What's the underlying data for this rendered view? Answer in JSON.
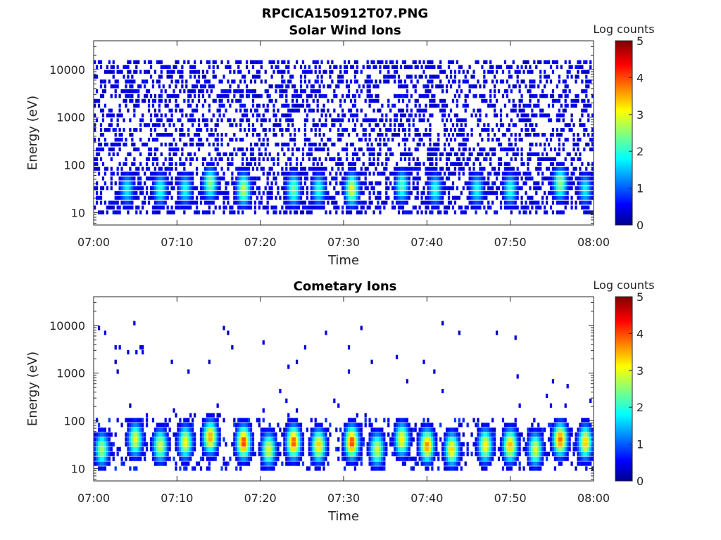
{
  "figure": {
    "suptitle": "RPCICA150912T07.PNG"
  },
  "colorbar": {
    "label": "Log counts",
    "ticks": [
      "0",
      "1",
      "2",
      "3",
      "4",
      "5"
    ],
    "range": [
      0,
      5
    ],
    "colormap": "jet"
  },
  "chart_data": [
    {
      "type": "heatmap",
      "title": "Solar Wind Ions",
      "xlabel": "Time",
      "ylabel": "Energy (eV)",
      "x_ticks": [
        "07:00",
        "07:10",
        "07:20",
        "07:30",
        "07:40",
        "07:50",
        "08:00"
      ],
      "x_range": [
        "07:00",
        "08:00"
      ],
      "y_ticks": [
        "10",
        "100",
        "1000",
        "10000"
      ],
      "y_scale": "log",
      "y_range": [
        5.5,
        40000
      ],
      "z_label": "Log counts",
      "z_range": [
        0,
        5
      ],
      "background_noise": "dense scattered low-count (~0-0.5) pixels across 10-20000 eV",
      "features": [
        {
          "time": "07:04",
          "energy_eV": 30,
          "log_counts": 1.6
        },
        {
          "time": "07:08",
          "energy_eV": 30,
          "log_counts": 1.8
        },
        {
          "time": "07:11",
          "energy_eV": 30,
          "log_counts": 1.7
        },
        {
          "time": "07:14",
          "energy_eV": 40,
          "log_counts": 2.3
        },
        {
          "time": "07:18",
          "energy_eV": 30,
          "log_counts": 2.6
        },
        {
          "time": "07:24",
          "energy_eV": 30,
          "log_counts": 2.2
        },
        {
          "time": "07:27",
          "energy_eV": 30,
          "log_counts": 1.8
        },
        {
          "time": "07:31",
          "energy_eV": 30,
          "log_counts": 2.8
        },
        {
          "time": "07:37",
          "energy_eV": 35,
          "log_counts": 2.0
        },
        {
          "time": "07:41",
          "energy_eV": 30,
          "log_counts": 1.8
        },
        {
          "time": "07:46",
          "energy_eV": 30,
          "log_counts": 1.7
        },
        {
          "time": "07:50",
          "energy_eV": 30,
          "log_counts": 1.8
        },
        {
          "time": "07:56",
          "energy_eV": 40,
          "log_counts": 2.4
        },
        {
          "time": "07:59",
          "energy_eV": 30,
          "log_counts": 1.6
        }
      ]
    },
    {
      "type": "heatmap",
      "title": "Cometary Ions",
      "xlabel": "Time",
      "ylabel": "Energy (eV)",
      "x_ticks": [
        "07:00",
        "07:10",
        "07:20",
        "07:30",
        "07:40",
        "07:50",
        "08:00"
      ],
      "x_range": [
        "07:00",
        "08:00"
      ],
      "y_ticks": [
        "10",
        "100",
        "1000",
        "10000"
      ],
      "y_scale": "log",
      "y_range": [
        5.5,
        40000
      ],
      "z_label": "Log counts",
      "z_range": [
        0,
        5
      ],
      "background_noise": "sparse low-count pixels above 100 eV",
      "features": [
        {
          "time": "07:01",
          "energy_eV": 25,
          "log_counts": 2.5
        },
        {
          "time": "07:05",
          "energy_eV": 40,
          "log_counts": 2.8
        },
        {
          "time": "07:08",
          "energy_eV": 30,
          "log_counts": 2.7
        },
        {
          "time": "07:11",
          "energy_eV": 35,
          "log_counts": 2.9
        },
        {
          "time": "07:14",
          "energy_eV": 45,
          "log_counts": 3.4
        },
        {
          "time": "07:18",
          "energy_eV": 35,
          "log_counts": 3.9
        },
        {
          "time": "07:21",
          "energy_eV": 25,
          "log_counts": 2.8
        },
        {
          "time": "07:24",
          "energy_eV": 35,
          "log_counts": 3.8
        },
        {
          "time": "07:27",
          "energy_eV": 30,
          "log_counts": 3.2
        },
        {
          "time": "07:31",
          "energy_eV": 35,
          "log_counts": 3.9
        },
        {
          "time": "07:34",
          "energy_eV": 25,
          "log_counts": 2.7
        },
        {
          "time": "07:37",
          "energy_eV": 40,
          "log_counts": 3.0
        },
        {
          "time": "07:40",
          "energy_eV": 30,
          "log_counts": 3.5
        },
        {
          "time": "07:43",
          "energy_eV": 25,
          "log_counts": 3.1
        },
        {
          "time": "07:47",
          "energy_eV": 30,
          "log_counts": 3.0
        },
        {
          "time": "07:50",
          "energy_eV": 30,
          "log_counts": 3.3
        },
        {
          "time": "07:53",
          "energy_eV": 25,
          "log_counts": 2.8
        },
        {
          "time": "07:56",
          "energy_eV": 40,
          "log_counts": 3.7
        },
        {
          "time": "07:59",
          "energy_eV": 35,
          "log_counts": 3.2
        }
      ]
    }
  ]
}
